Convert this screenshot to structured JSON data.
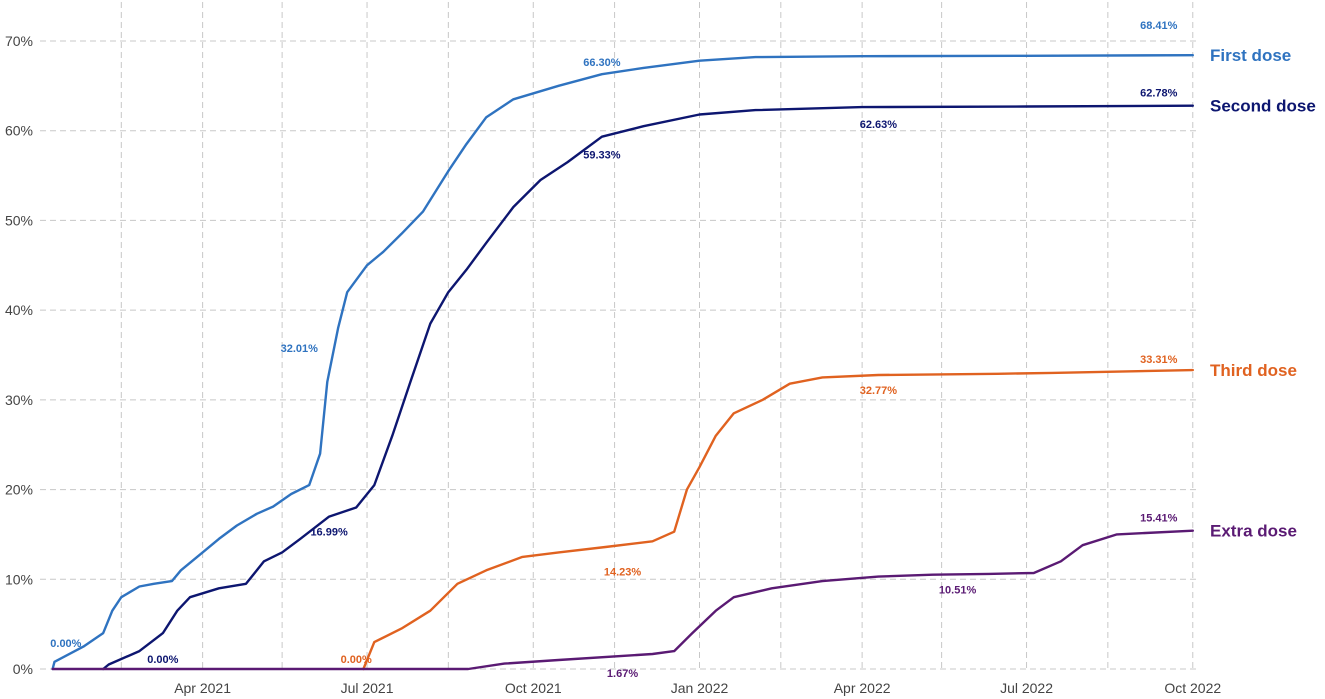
{
  "chart_data": {
    "type": "line",
    "title": "",
    "xlabel": "",
    "ylabel": "",
    "x_axis": {
      "type": "date",
      "range": [
        "2021-01-01",
        "2022-10-05"
      ],
      "ticks": [
        {
          "date": "2021-04-01",
          "label": "Apr 2021"
        },
        {
          "date": "2021-07-01",
          "label": "Jul 2021"
        },
        {
          "date": "2021-10-01",
          "label": "Oct 2021"
        },
        {
          "date": "2022-01-01",
          "label": "Jan 2022"
        },
        {
          "date": "2022-04-01",
          "label": "Apr 2022"
        },
        {
          "date": "2022-07-01",
          "label": "Jul 2022"
        },
        {
          "date": "2022-10-01",
          "label": "Oct 2022"
        }
      ],
      "minor_grid": [
        "2021-02-15",
        "2021-05-15",
        "2021-08-15",
        "2021-11-15",
        "2022-02-15",
        "2022-05-15",
        "2022-08-15"
      ]
    },
    "y_axis": {
      "range": [
        0,
        71
      ],
      "ticks": [
        {
          "value": 0,
          "label": "0%"
        },
        {
          "value": 10,
          "label": "10%"
        },
        {
          "value": 20,
          "label": "20%"
        },
        {
          "value": 30,
          "label": "30%"
        },
        {
          "value": 40,
          "label": "40%"
        },
        {
          "value": 50,
          "label": "50%"
        },
        {
          "value": 60,
          "label": "60%"
        },
        {
          "value": 70,
          "label": "70%"
        }
      ]
    },
    "grid": true,
    "legend": "direct labels at right end of each line",
    "series": [
      {
        "name": "First dose",
        "color": "#2f73c0",
        "points": [
          [
            "2021-01-08",
            0
          ],
          [
            "2021-01-09",
            0.8
          ],
          [
            "2021-01-25",
            2.5
          ],
          [
            "2021-02-05",
            4
          ],
          [
            "2021-02-10",
            6.5
          ],
          [
            "2021-02-15",
            8
          ],
          [
            "2021-02-25",
            9.2
          ],
          [
            "2021-03-05",
            9.5
          ],
          [
            "2021-03-15",
            9.8
          ],
          [
            "2021-03-20",
            11
          ],
          [
            "2021-04-01",
            13
          ],
          [
            "2021-04-10",
            14.5
          ],
          [
            "2021-04-20",
            16
          ],
          [
            "2021-05-01",
            17.3
          ],
          [
            "2021-05-10",
            18.1
          ],
          [
            "2021-05-20",
            19.5
          ],
          [
            "2021-05-30",
            20.5
          ],
          [
            "2021-06-05",
            24
          ],
          [
            "2021-06-09",
            32.01
          ],
          [
            "2021-06-15",
            38
          ],
          [
            "2021-06-20",
            42
          ],
          [
            "2021-07-01",
            45
          ],
          [
            "2021-07-10",
            46.5
          ],
          [
            "2021-07-20",
            48.5
          ],
          [
            "2021-08-01",
            51
          ],
          [
            "2021-08-15",
            55.5
          ],
          [
            "2021-08-25",
            58.5
          ],
          [
            "2021-09-05",
            61.5
          ],
          [
            "2021-09-20",
            63.5
          ],
          [
            "2021-10-15",
            65
          ],
          [
            "2021-11-08",
            66.3
          ],
          [
            "2021-12-01",
            67
          ],
          [
            "2022-01-01",
            67.8
          ],
          [
            "2022-02-01",
            68.2
          ],
          [
            "2022-04-01",
            68.3
          ],
          [
            "2022-07-01",
            68.35
          ],
          [
            "2022-10-01",
            68.41
          ]
        ]
      },
      {
        "name": "Second dose",
        "color": "#0d1670",
        "points": [
          [
            "2021-02-05",
            0
          ],
          [
            "2021-02-08",
            0.5
          ],
          [
            "2021-02-25",
            2
          ],
          [
            "2021-03-10",
            4
          ],
          [
            "2021-03-18",
            6.5
          ],
          [
            "2021-03-25",
            8
          ],
          [
            "2021-04-10",
            9
          ],
          [
            "2021-04-25",
            9.5
          ],
          [
            "2021-05-05",
            12
          ],
          [
            "2021-05-15",
            13
          ],
          [
            "2021-05-25",
            14.5
          ],
          [
            "2021-06-10",
            16.99
          ],
          [
            "2021-06-25",
            18
          ],
          [
            "2021-07-05",
            20.5
          ],
          [
            "2021-07-15",
            26
          ],
          [
            "2021-07-25",
            32
          ],
          [
            "2021-08-05",
            38.5
          ],
          [
            "2021-08-15",
            42
          ],
          [
            "2021-08-25",
            44.5
          ],
          [
            "2021-09-05",
            47.5
          ],
          [
            "2021-09-20",
            51.5
          ],
          [
            "2021-10-05",
            54.5
          ],
          [
            "2021-10-20",
            56.5
          ],
          [
            "2021-11-08",
            59.33
          ],
          [
            "2021-12-01",
            60.5
          ],
          [
            "2022-01-01",
            61.8
          ],
          [
            "2022-02-01",
            62.3
          ],
          [
            "2022-04-01",
            62.63
          ],
          [
            "2022-07-01",
            62.7
          ],
          [
            "2022-10-01",
            62.78
          ]
        ]
      },
      {
        "name": "Third dose",
        "color": "#e06220",
        "points": [
          [
            "2021-06-29",
            0
          ],
          [
            "2021-07-05",
            3
          ],
          [
            "2021-07-20",
            4.5
          ],
          [
            "2021-08-05",
            6.5
          ],
          [
            "2021-08-20",
            9.5
          ],
          [
            "2021-09-05",
            11
          ],
          [
            "2021-09-25",
            12.5
          ],
          [
            "2021-10-15",
            13
          ],
          [
            "2021-11-10",
            13.6
          ],
          [
            "2021-12-06",
            14.23
          ],
          [
            "2021-12-18",
            15.3
          ],
          [
            "2021-12-25",
            20
          ],
          [
            "2022-01-01",
            22.5
          ],
          [
            "2022-01-10",
            26
          ],
          [
            "2022-01-20",
            28.5
          ],
          [
            "2022-02-05",
            30
          ],
          [
            "2022-02-20",
            31.8
          ],
          [
            "2022-03-10",
            32.5
          ],
          [
            "2022-04-10",
            32.77
          ],
          [
            "2022-06-15",
            32.9
          ],
          [
            "2022-07-15",
            33.0
          ],
          [
            "2022-10-01",
            33.31
          ]
        ]
      },
      {
        "name": "Extra dose",
        "color": "#5a1a73",
        "points": [
          [
            "2021-01-08",
            0
          ],
          [
            "2021-08-26",
            0
          ],
          [
            "2021-09-15",
            0.6
          ],
          [
            "2021-10-15",
            1.0
          ],
          [
            "2021-12-06",
            1.67
          ],
          [
            "2021-12-18",
            2.0
          ],
          [
            "2021-12-28",
            4
          ],
          [
            "2022-01-10",
            6.5
          ],
          [
            "2022-01-20",
            8
          ],
          [
            "2022-02-10",
            9
          ],
          [
            "2022-03-10",
            9.8
          ],
          [
            "2022-04-10",
            10.3
          ],
          [
            "2022-05-10",
            10.51
          ],
          [
            "2022-06-10",
            10.6
          ],
          [
            "2022-07-05",
            10.7
          ],
          [
            "2022-07-20",
            12
          ],
          [
            "2022-08-01",
            13.8
          ],
          [
            "2022-08-20",
            15
          ],
          [
            "2022-10-01",
            15.41
          ]
        ]
      }
    ],
    "annotations": [
      {
        "series": "First dose",
        "date": "2021-01-12",
        "y": 0.0,
        "text": "0.00%",
        "dx": 6,
        "dy": -22
      },
      {
        "series": "First dose",
        "date": "2021-06-09",
        "y": 32.01,
        "text": "32.01%",
        "dx": -28,
        "dy": -30
      },
      {
        "series": "First dose",
        "date": "2021-11-08",
        "y": 66.3,
        "text": "66.30%",
        "dx": 0,
        "dy": -8
      },
      {
        "series": "First dose",
        "date": "2022-10-01",
        "y": 68.41,
        "text": "68.41%",
        "dx": -34,
        "dy": -26
      },
      {
        "series": "Second dose",
        "date": "2021-03-10",
        "y": 0.0,
        "text": "0.00%",
        "dx": 0,
        "dy": -6
      },
      {
        "series": "Second dose",
        "date": "2021-06-10",
        "y": 16.99,
        "text": "16.99%",
        "dx": 0,
        "dy": 19
      },
      {
        "series": "Second dose",
        "date": "2021-11-08",
        "y": 59.33,
        "text": "59.33%",
        "dx": 0,
        "dy": 22
      },
      {
        "series": "Second dose",
        "date": "2022-04-10",
        "y": 62.63,
        "text": "62.63%",
        "dx": 0,
        "dy": 21
      },
      {
        "series": "Second dose",
        "date": "2022-10-01",
        "y": 62.78,
        "text": "62.78%",
        "dx": -34,
        "dy": -9
      },
      {
        "series": "Third dose",
        "date": "2021-06-25",
        "y": 0.0,
        "text": "0.00%",
        "dx": 0,
        "dy": -6
      },
      {
        "series": "Third dose",
        "date": "2021-12-06",
        "y": 14.23,
        "text": "14.23%",
        "dx": -30,
        "dy": 34
      },
      {
        "series": "Third dose",
        "date": "2022-04-10",
        "y": 32.77,
        "text": "32.77%",
        "dx": 0,
        "dy": 19
      },
      {
        "series": "Third dose",
        "date": "2022-10-01",
        "y": 33.31,
        "text": "33.31%",
        "dx": -34,
        "dy": -7
      },
      {
        "series": "Extra dose",
        "date": "2021-12-06",
        "y": 1.67,
        "text": "1.67%",
        "dx": -30,
        "dy": 23
      },
      {
        "series": "Extra dose",
        "date": "2022-05-10",
        "y": 10.51,
        "text": "10.51%",
        "dx": 25,
        "dy": 19
      },
      {
        "series": "Extra dose",
        "date": "2022-10-01",
        "y": 15.41,
        "text": "15.41%",
        "dx": -34,
        "dy": -9
      }
    ]
  }
}
